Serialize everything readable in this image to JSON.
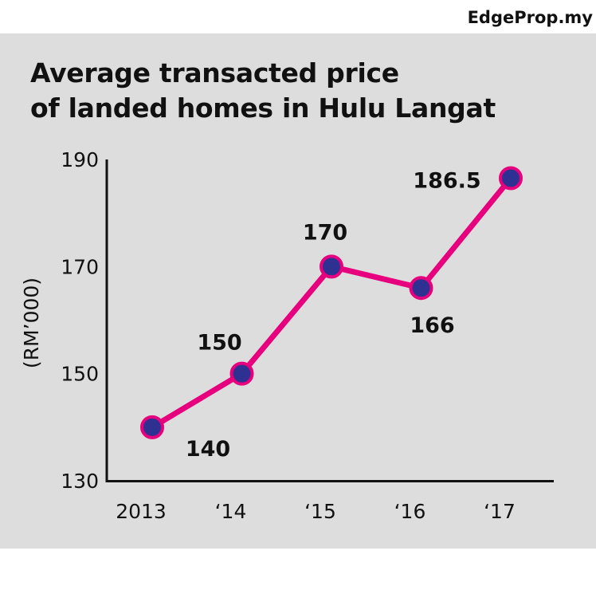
{
  "brand": "EdgeProp.my",
  "chart_data": {
    "type": "line",
    "title_lines": [
      "Average transacted price",
      "of landed homes in Hulu Langat"
    ],
    "ylabel": "(RM’000)",
    "xlabel": "",
    "categories": [
      "2013",
      "‘14",
      "‘15",
      "‘16",
      "‘17"
    ],
    "values": [
      140,
      150,
      170,
      166,
      186.5
    ],
    "data_labels": [
      "140",
      "150",
      "170",
      "166",
      "186.5"
    ],
    "ylim": [
      130,
      190
    ],
    "yticks": [
      130,
      150,
      170,
      190
    ],
    "ytick_labels": [
      "130",
      "150",
      "170",
      "190"
    ],
    "grid": false,
    "legend": "none",
    "line_color": "#e6007e",
    "marker_color": "#2e3192"
  }
}
